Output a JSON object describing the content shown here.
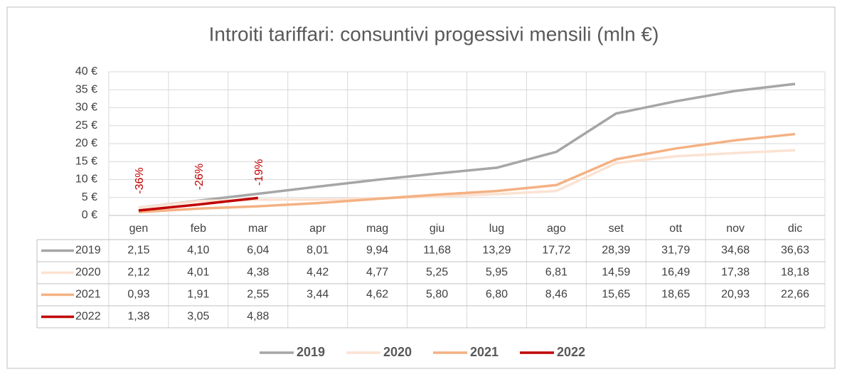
{
  "chart_data": {
    "type": "line",
    "title": "Introiti tariffari: consuntivi progessivi mensili (mln €)",
    "categories": [
      "gen",
      "feb",
      "mar",
      "apr",
      "mag",
      "giu",
      "lug",
      "ago",
      "set",
      "ott",
      "nov",
      "dic"
    ],
    "ylim": [
      0,
      40
    ],
    "yticks": [
      {
        "value": 0,
        "label": "0 €"
      },
      {
        "value": 5,
        "label": "5 €"
      },
      {
        "value": 10,
        "label": "10 €"
      },
      {
        "value": 15,
        "label": "15 €"
      },
      {
        "value": 20,
        "label": "20 €"
      },
      {
        "value": 25,
        "label": "25 €"
      },
      {
        "value": 30,
        "label": "30 €"
      },
      {
        "value": 35,
        "label": "35 €"
      },
      {
        "value": 40,
        "label": "40 €"
      }
    ],
    "grid": true,
    "legend": "bottom",
    "annotations": [
      "-36%",
      "-26%",
      "-19%"
    ],
    "series": [
      {
        "name": "2019",
        "color": "#a6a6a6",
        "values": [
          2.15,
          4.1,
          6.04,
          8.01,
          9.94,
          11.68,
          13.29,
          17.72,
          28.39,
          31.79,
          34.68,
          36.63
        ],
        "value_labels": [
          "2,15",
          "4,10",
          "6,04",
          "8,01",
          "9,94",
          "11,68",
          "13,29",
          "17,72",
          "28,39",
          "31,79",
          "34,68",
          "36,63"
        ]
      },
      {
        "name": "2020",
        "color": "#fbe2d2",
        "values": [
          2.12,
          4.01,
          4.38,
          4.42,
          4.77,
          5.25,
          5.95,
          6.81,
          14.59,
          16.49,
          17.38,
          18.18
        ],
        "value_labels": [
          "2,12",
          "4,01",
          "4,38",
          "4,42",
          "4,77",
          "5,25",
          "5,95",
          "6,81",
          "14,59",
          "16,49",
          "17,38",
          "18,18"
        ]
      },
      {
        "name": "2021",
        "color": "#f4b183",
        "values": [
          0.93,
          1.91,
          2.55,
          3.44,
          4.62,
          5.8,
          6.8,
          8.46,
          15.65,
          18.65,
          20.93,
          22.66
        ],
        "value_labels": [
          "0,93",
          "1,91",
          "2,55",
          "3,44",
          "4,62",
          "5,80",
          "6,80",
          "8,46",
          "15,65",
          "18,65",
          "20,93",
          "22,66"
        ]
      },
      {
        "name": "2022",
        "color": "#c00000",
        "values": [
          1.38,
          3.05,
          4.88,
          null,
          null,
          null,
          null,
          null,
          null,
          null,
          null,
          null
        ],
        "value_labels": [
          "1,38",
          "3,05",
          "4,88",
          null,
          null,
          null,
          null,
          null,
          null,
          null,
          null,
          null
        ]
      }
    ]
  }
}
